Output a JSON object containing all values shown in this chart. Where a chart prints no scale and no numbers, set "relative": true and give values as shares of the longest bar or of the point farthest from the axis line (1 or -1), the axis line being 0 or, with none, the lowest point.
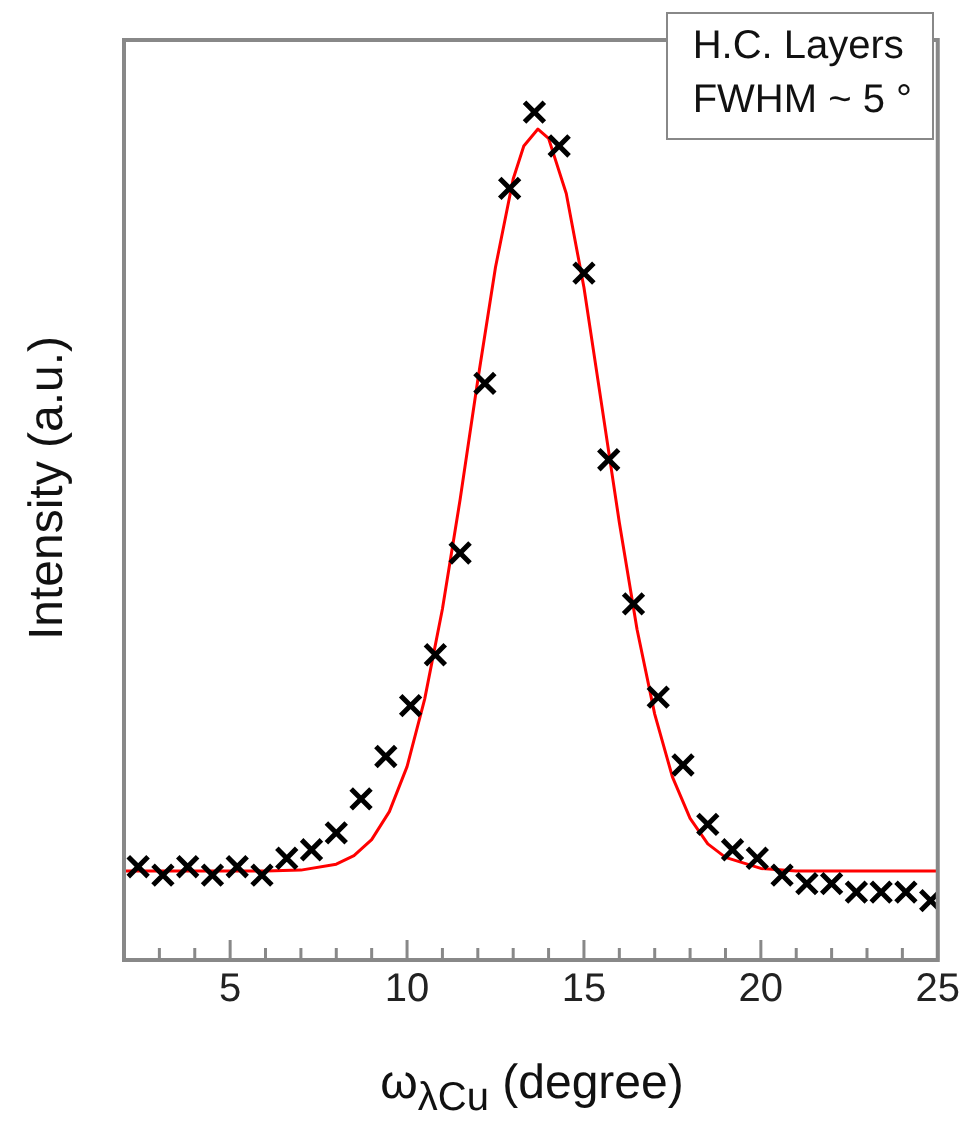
{
  "chart_data": {
    "type": "scatter",
    "relative": true,
    "xlabel": "ω$_{λCu}$ (degree)",
    "ylabel": "Intensity (a.u.)",
    "annotations": [
      "H.C. Layers",
      "FWHM ~ 5 °"
    ],
    "xlim": [
      2,
      25
    ],
    "xticks": [
      {
        "value": 3,
        "label": null
      },
      {
        "value": 4,
        "label": null
      },
      5,
      {
        "value": 6,
        "label": null
      },
      {
        "value": 7,
        "label": null
      },
      {
        "value": 8,
        "label": null
      },
      {
        "value": 9,
        "label": null
      },
      10,
      {
        "value": 11,
        "label": null
      },
      {
        "value": 12,
        "label": null
      },
      {
        "value": 13,
        "label": null
      },
      {
        "value": 14,
        "label": null
      },
      15,
      {
        "value": 16,
        "label": null
      },
      {
        "value": 17,
        "label": null
      },
      {
        "value": 18,
        "label": null
      },
      {
        "value": 19,
        "label": null
      },
      20,
      {
        "value": 21,
        "label": null
      },
      {
        "value": 22,
        "label": null
      },
      {
        "value": 23,
        "label": null
      },
      {
        "value": 24,
        "label": null
      },
      25
    ],
    "grid": false,
    "legend": false,
    "tick_labels": "x",
    "marker": "cross",
    "series": [
      {
        "color": "#000000",
        "x": [
          2.4,
          3.1,
          3.8,
          4.5,
          5.2,
          5.9,
          6.6,
          7.3,
          8.0,
          8.7,
          9.4,
          10.1,
          10.8,
          11.5,
          12.2,
          12.9,
          13.6,
          14.3,
          15.0,
          15.7,
          16.4,
          17.1,
          17.8,
          18.5,
          19.2,
          19.9,
          20.6,
          21.3,
          22.0,
          22.7,
          23.4,
          24.1,
          24.8
        ],
        "values": [
          0.11,
          0.1,
          0.11,
          0.1,
          0.11,
          0.1,
          0.12,
          0.13,
          0.15,
          0.19,
          0.24,
          0.3,
          0.36,
          0.48,
          0.68,
          0.91,
          1,
          0.96,
          0.81,
          0.59,
          0.42,
          0.31,
          0.23,
          0.16,
          0.13,
          0.12,
          0.1,
          0.09,
          0.09,
          0.08,
          0.08,
          0.08,
          0.07
        ]
      },
      {
        "type": "line",
        "color": "#ff0000",
        "marker": "none",
        "x": [
          2,
          6,
          7,
          8,
          8.5,
          9,
          9.5,
          10,
          10.5,
          11,
          11.5,
          12,
          12.5,
          13,
          13.3,
          13.7,
          14,
          14.5,
          15,
          15.5,
          16,
          16.5,
          17,
          17.5,
          18,
          18.5,
          19,
          20,
          21,
          25
        ],
        "values": [
          0.105,
          0.105,
          0.106,
          0.113,
          0.123,
          0.142,
          0.175,
          0.228,
          0.308,
          0.414,
          0.543,
          0.684,
          0.817,
          0.921,
          0.96,
          0.98,
          0.969,
          0.904,
          0.793,
          0.655,
          0.516,
          0.39,
          0.29,
          0.216,
          0.167,
          0.137,
          0.121,
          0.108,
          0.105,
          0.105
        ]
      }
    ]
  }
}
